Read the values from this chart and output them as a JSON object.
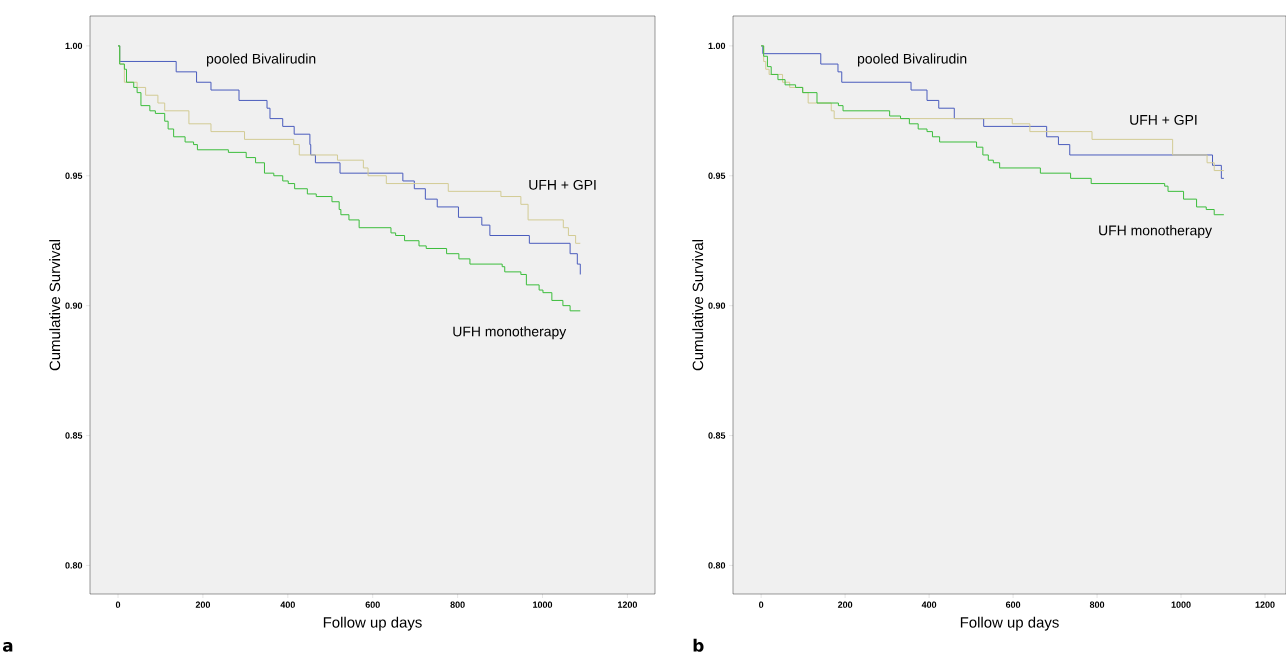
{
  "chart_data": [
    {
      "type": "step",
      "xlabel": "Follow up days",
      "ylabel": "Cumulative Survival",
      "annotations": [
        "a"
      ],
      "xlim": [
        -66,
        1265
      ],
      "ylim": [
        0.789,
        1.0115
      ],
      "xticks": [
        0,
        200,
        400,
        600,
        800,
        1000,
        1200
      ],
      "yticks": [
        {
          "value": 0.8,
          "label": "0.80"
        },
        {
          "value": 0.85,
          "label": "0.85"
        },
        {
          "value": 0.9,
          "label": "0.90"
        },
        {
          "value": 0.95,
          "label": "0.95"
        },
        {
          "value": 1.0,
          "label": "1.00"
        }
      ],
      "grid": false,
      "marker": "none",
      "line_style": "solid",
      "series": [
        {
          "name": "pooled Bivalirudin",
          "color": "#4a5cbd",
          "x": [
            0,
            4,
            137,
            185,
            219,
            285,
            351,
            358,
            388,
            415,
            452,
            454,
            465,
            523,
            671,
            698,
            724,
            752,
            802,
            857,
            876,
            969,
            1065,
            1082,
            1089
          ],
          "values": [
            1.0,
            0.994,
            0.99,
            0.986,
            0.983,
            0.979,
            0.976,
            0.972,
            0.969,
            0.966,
            0.962,
            0.958,
            0.955,
            0.951,
            0.948,
            0.945,
            0.941,
            0.938,
            0.934,
            0.931,
            0.927,
            0.924,
            0.92,
            0.916,
            0.912
          ]
        },
        {
          "name": "UFH + GPI",
          "color": "#d2cb94",
          "x": [
            0,
            4,
            15,
            45,
            65,
            94,
            110,
            167,
            219,
            298,
            414,
            427,
            517,
            578,
            589,
            632,
            778,
            902,
            949,
            966,
            1049,
            1061,
            1078,
            1089
          ],
          "values": [
            1.0,
            0.993,
            0.986,
            0.984,
            0.981,
            0.978,
            0.975,
            0.97,
            0.967,
            0.964,
            0.962,
            0.958,
            0.956,
            0.953,
            0.95,
            0.947,
            0.944,
            0.942,
            0.939,
            0.933,
            0.93,
            0.927,
            0.924,
            0.924
          ]
        },
        {
          "name": "UFH monotherapy",
          "color": "#3cbd3c",
          "x": [
            0,
            4,
            15,
            20,
            37,
            45,
            54,
            75,
            88,
            110,
            118,
            131,
            158,
            178,
            187,
            260,
            302,
            324,
            345,
            367,
            388,
            401,
            416,
            446,
            467,
            504,
            521,
            525,
            544,
            568,
            643,
            654,
            675,
            709,
            726,
            774,
            803,
            829,
            905,
            911,
            949,
            962,
            992,
            1001,
            1022,
            1048,
            1065,
            1089
          ],
          "values": [
            1.0,
            0.993,
            0.991,
            0.986,
            0.984,
            0.982,
            0.977,
            0.975,
            0.974,
            0.971,
            0.968,
            0.965,
            0.963,
            0.962,
            0.96,
            0.959,
            0.957,
            0.955,
            0.951,
            0.95,
            0.948,
            0.947,
            0.945,
            0.943,
            0.942,
            0.94,
            0.937,
            0.935,
            0.933,
            0.93,
            0.928,
            0.927,
            0.925,
            0.923,
            0.922,
            0.92,
            0.918,
            0.916,
            0.915,
            0.913,
            0.912,
            0.908,
            0.906,
            0.905,
            0.902,
            0.9,
            0.898,
            0.898
          ]
        }
      ]
    },
    {
      "type": "step",
      "xlabel": "Follow up days",
      "ylabel": "Cumulative Survival",
      "annotations": [
        "b"
      ],
      "xlim": [
        -67,
        1250
      ],
      "ylim": [
        0.789,
        1.0115
      ],
      "xticks": [
        0,
        200,
        400,
        600,
        800,
        1000,
        1200
      ],
      "yticks": [
        {
          "value": 0.8,
          "label": "0.80"
        },
        {
          "value": 0.85,
          "label": "0.85"
        },
        {
          "value": 0.9,
          "label": "0.90"
        },
        {
          "value": 0.95,
          "label": "0.95"
        },
        {
          "value": 1.0,
          "label": "1.00"
        }
      ],
      "grid": false,
      "marker": "none",
      "line_style": "solid",
      "series": [
        {
          "name": "pooled Bivalirudin",
          "color": "#4a5cbd",
          "x": [
            0,
            4,
            142,
            183,
            192,
            357,
            395,
            423,
            460,
            530,
            680,
            708,
            735,
            1075,
            1096,
            1102
          ],
          "values": [
            1.0,
            0.997,
            0.993,
            0.99,
            0.986,
            0.983,
            0.979,
            0.976,
            0.972,
            0.969,
            0.965,
            0.962,
            0.958,
            0.954,
            0.949,
            0.949
          ]
        },
        {
          "name": "UFH + GPI",
          "color": "#d2cb94",
          "x": [
            0,
            6,
            11,
            19,
            51,
            68,
            99,
            112,
            167,
            174,
            598,
            640,
            788,
            980,
            1062,
            1079,
            1102
          ],
          "values": [
            1.0,
            0.994,
            0.991,
            0.989,
            0.986,
            0.984,
            0.982,
            0.978,
            0.975,
            0.972,
            0.97,
            0.967,
            0.964,
            0.958,
            0.955,
            0.952,
            0.952
          ]
        },
        {
          "name": "UFH monotherapy",
          "color": "#3cbd3c",
          "x": [
            0,
            6,
            15,
            24,
            40,
            57,
            82,
            99,
            133,
            184,
            195,
            306,
            332,
            353,
            374,
            395,
            408,
            425,
            513,
            528,
            541,
            553,
            568,
            665,
            737,
            786,
            961,
            969,
            1006,
            1037,
            1060,
            1079,
            1102
          ],
          "values": [
            1.0,
            0.996,
            0.992,
            0.989,
            0.987,
            0.985,
            0.984,
            0.982,
            0.978,
            0.977,
            0.975,
            0.973,
            0.972,
            0.97,
            0.968,
            0.967,
            0.965,
            0.963,
            0.961,
            0.958,
            0.956,
            0.955,
            0.953,
            0.951,
            0.949,
            0.947,
            0.946,
            0.944,
            0.941,
            0.938,
            0.937,
            0.935,
            0.935
          ]
        }
      ]
    }
  ]
}
